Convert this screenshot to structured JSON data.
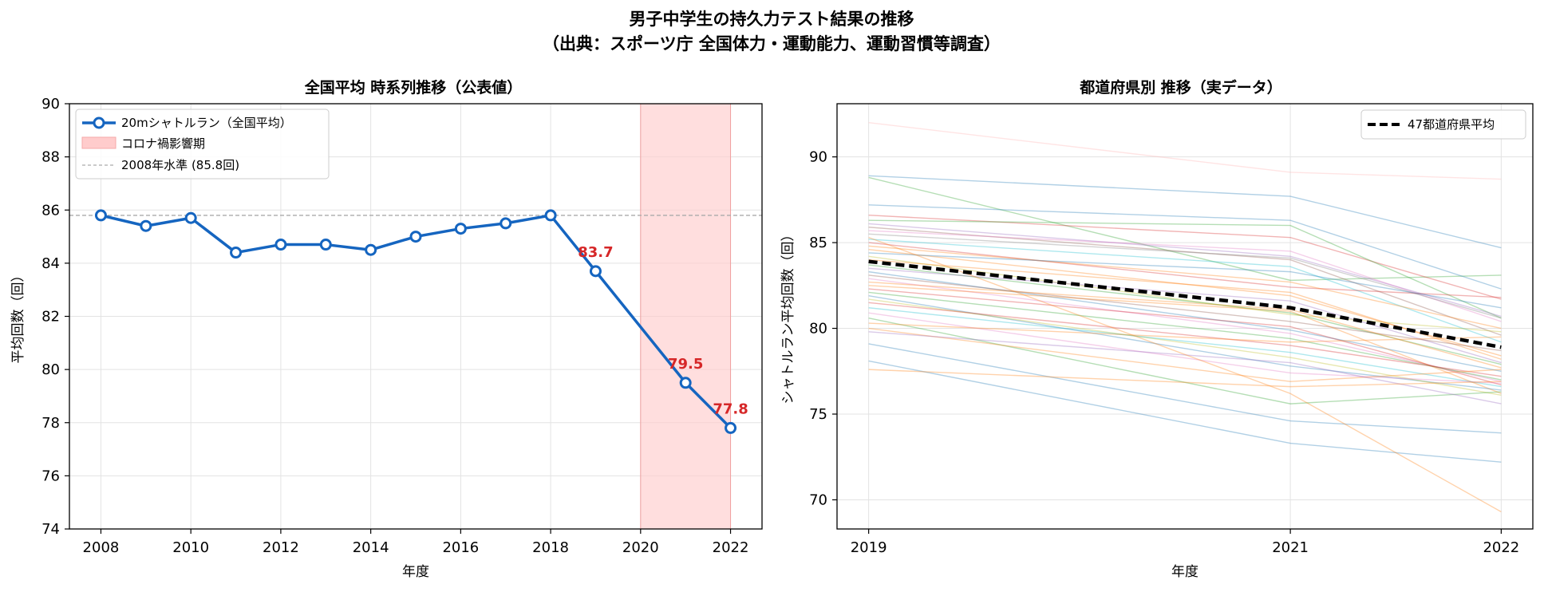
{
  "suptitle_line1": "男子中学生の持久力テスト結果の推移",
  "suptitle_line2": "（出典：スポーツ庁 全国体力・運動能力、運動習慣等調査）",
  "chart_data": [
    {
      "type": "line",
      "title": "全国平均 時系列推移（公表値）",
      "xlabel": "年度",
      "ylabel": "平均回数（回）",
      "xlim": [
        2007.3,
        2022.7
      ],
      "ylim": [
        74,
        90
      ],
      "xticks": [
        2008,
        2010,
        2012,
        2014,
        2016,
        2018,
        2020,
        2022
      ],
      "yticks": [
        74,
        76,
        78,
        80,
        82,
        84,
        86,
        88,
        90
      ],
      "grid": true,
      "legend_position": "top-left",
      "series": [
        {
          "name": "20mシャトルラン（全国平均）",
          "color": "#1565c0",
          "x": [
            2008,
            2009,
            2010,
            2011,
            2012,
            2013,
            2014,
            2015,
            2016,
            2017,
            2018,
            2019,
            2021,
            2022
          ],
          "y": [
            85.8,
            85.4,
            85.7,
            84.4,
            84.7,
            84.7,
            84.5,
            85.0,
            85.3,
            85.5,
            85.8,
            83.7,
            79.5,
            77.8
          ]
        }
      ],
      "shaded_region": {
        "name": "コロナ禍影響期",
        "x_range": [
          2020,
          2022
        ],
        "color": "#ffcccc"
      },
      "reference_line": {
        "name": "2008年水準 (85.8回)",
        "y": 85.8,
        "color": "#aaaaaa"
      },
      "annotations": [
        {
          "x": 2019,
          "y": 83.7,
          "text": "83.7"
        },
        {
          "x": 2021,
          "y": 79.5,
          "text": "79.5"
        },
        {
          "x": 2022,
          "y": 77.8,
          "text": "77.8"
        }
      ]
    },
    {
      "type": "line",
      "title": "都道府県別 推移（実データ）",
      "xlabel": "年度",
      "ylabel": "シャトルラン平均回数（回）",
      "xlim": [
        2018.85,
        2022.15
      ],
      "ylim": [
        68.3,
        93.1
      ],
      "xticks": [
        2019,
        2021,
        2022
      ],
      "yticks": [
        70,
        75,
        80,
        85,
        90
      ],
      "grid": true,
      "legend_position": "top-right",
      "x": [
        2019,
        2021,
        2022
      ],
      "average": {
        "name": "47都道府県平均",
        "color": "#000000",
        "values": [
          83.9,
          81.2,
          78.9
        ]
      },
      "prefectures": [
        {
          "values": [
            92.0,
            89.1,
            88.7
          ],
          "color": "#ffb3b3"
        },
        {
          "values": [
            88.9,
            87.7,
            84.7
          ],
          "color": "#1f77b4"
        },
        {
          "values": [
            88.8,
            82.8,
            83.1
          ],
          "color": "#2ca02c"
        },
        {
          "values": [
            87.2,
            86.3,
            82.3
          ],
          "color": "#1f77b4"
        },
        {
          "values": [
            86.6,
            85.3,
            81.7
          ],
          "color": "#d62728"
        },
        {
          "values": [
            86.3,
            86.0,
            80.6
          ],
          "color": "#2ca02c"
        },
        {
          "values": [
            86.1,
            84.2,
            80.7
          ],
          "color": "#9467bd"
        },
        {
          "values": [
            85.9,
            84.0,
            79.6
          ],
          "color": "#8c564b"
        },
        {
          "values": [
            85.7,
            84.5,
            80.4
          ],
          "color": "#e377c2"
        },
        {
          "values": [
            85.5,
            84.1,
            80.6
          ],
          "color": "#7f7f7f"
        },
        {
          "values": [
            85.2,
            83.6,
            79.2
          ],
          "color": "#17becf"
        },
        {
          "values": [
            85.0,
            82.4,
            81.8
          ],
          "color": "#d62728"
        },
        {
          "values": [
            84.8,
            82.7,
            80.0
          ],
          "color": "#ff7f0e"
        },
        {
          "values": [
            84.6,
            81.9,
            78.4
          ],
          "color": "#ff7f0e"
        },
        {
          "values": [
            84.4,
            83.3,
            81.2
          ],
          "color": "#1f77b4"
        },
        {
          "values": [
            84.2,
            80.8,
            79.8
          ],
          "color": "#bcbd22"
        },
        {
          "values": [
            84.0,
            82.1,
            78.2
          ],
          "color": "#ff7f0e"
        },
        {
          "values": [
            83.7,
            80.9,
            77.9
          ],
          "color": "#2ca02c"
        },
        {
          "values": [
            83.5,
            81.6,
            78.0
          ],
          "color": "#9467bd"
        },
        {
          "values": [
            83.3,
            79.9,
            77.5
          ],
          "color": "#1f77b4"
        },
        {
          "values": [
            83.1,
            80.4,
            78.7
          ],
          "color": "#8c564b"
        },
        {
          "values": [
            82.9,
            79.7,
            76.9
          ],
          "color": "#e377c2"
        },
        {
          "values": [
            82.7,
            81.1,
            77.7
          ],
          "color": "#ff7f0e"
        },
        {
          "values": [
            82.5,
            81.0,
            76.2
          ],
          "color": "#ff7f0e"
        },
        {
          "values": [
            82.3,
            80.1,
            76.7
          ],
          "color": "#d62728"
        },
        {
          "values": [
            82.1,
            79.4,
            77.0
          ],
          "color": "#2ca02c"
        },
        {
          "values": [
            81.9,
            77.8,
            76.4
          ],
          "color": "#1f77b4"
        },
        {
          "values": [
            81.7,
            78.3,
            76.1
          ],
          "color": "#bcbd22"
        },
        {
          "values": [
            81.5,
            79.0,
            77.2
          ],
          "color": "#d62728"
        },
        {
          "values": [
            81.2,
            78.6,
            76.6
          ],
          "color": "#17becf"
        },
        {
          "values": [
            80.9,
            77.4,
            76.8
          ],
          "color": "#e377c2"
        },
        {
          "values": [
            80.6,
            75.6,
            76.3
          ],
          "color": "#2ca02c"
        },
        {
          "values": [
            80.3,
            79.2,
            79.5
          ],
          "color": "#ff7f0e"
        },
        {
          "values": [
            80.0,
            76.9,
            77.6
          ],
          "color": "#ff7f0e"
        },
        {
          "values": [
            79.8,
            78.0,
            75.6
          ],
          "color": "#9467bd"
        },
        {
          "values": [
            79.1,
            74.6,
            73.9
          ],
          "color": "#1f77b4"
        },
        {
          "values": [
            78.1,
            73.3,
            72.2
          ],
          "color": "#1f77b4"
        },
        {
          "values": [
            77.6,
            76.6,
            76.9
          ],
          "color": "#ff7f0e"
        },
        {
          "values": [
            85.3,
            76.2,
            69.3
          ],
          "color": "#ff7f0e"
        }
      ]
    }
  ]
}
